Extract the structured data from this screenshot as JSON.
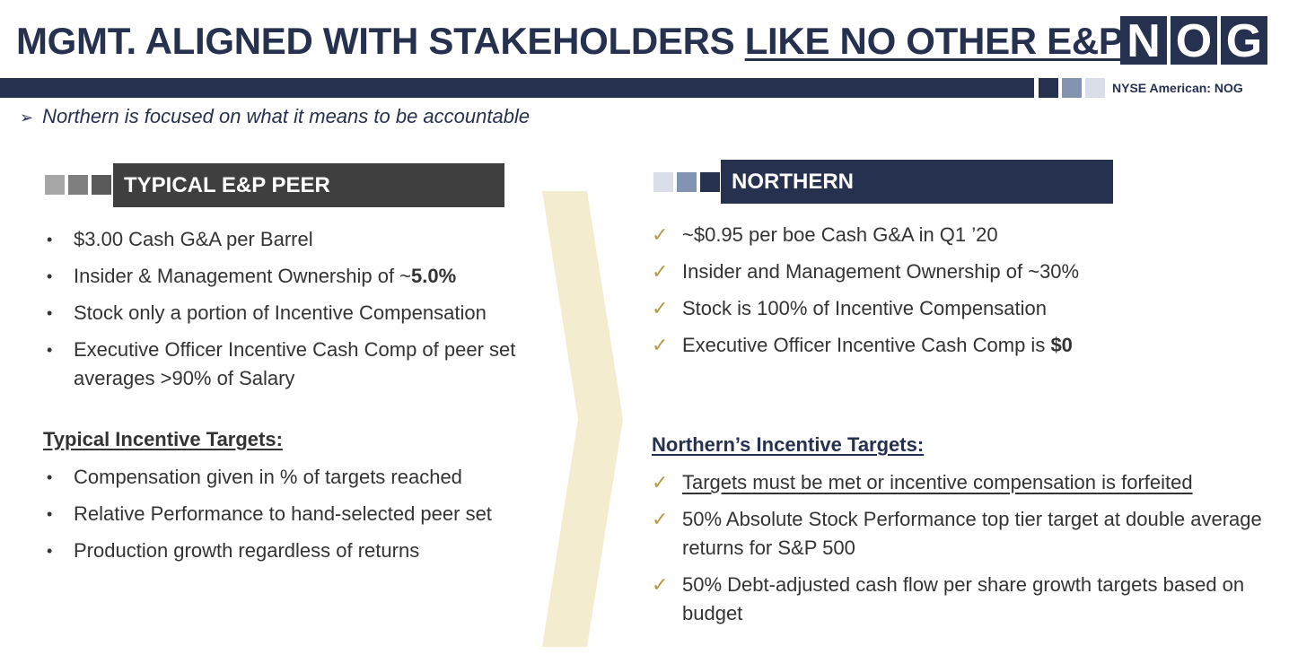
{
  "header": {
    "title_part1": "MGMT. ALIGNED WITH STAKEHOLDERS ",
    "title_part2": "LIKE NO OTHER E&P",
    "logo_letters": [
      "N",
      "O",
      "G"
    ],
    "exchange": "NYSE American: NOG"
  },
  "subtitle": {
    "arrow": "➢",
    "text": "Northern is focused on what it means to be accountable"
  },
  "left": {
    "header": "TYPICAL E&P PEER",
    "bullet_mark": "•",
    "bullets": [
      {
        "text": "$3.00 Cash G&A per Barrel",
        "bold": ""
      },
      {
        "text": "Insider & Management Ownership of ~",
        "bold": "5.0%"
      },
      {
        "text": "Stock only a portion of Incentive Compensation",
        "bold": ""
      },
      {
        "text": "Executive Officer Incentive Cash Comp of peer set averages  >90% of Salary",
        "bold": ""
      }
    ],
    "targets_heading": "Typical Incentive Targets:",
    "targets": [
      "Compensation given in % of targets reached",
      "Relative Performance to hand-selected peer set",
      "Production growth regardless of returns"
    ]
  },
  "right": {
    "header": "NORTHERN",
    "check_mark": "✓",
    "bullets": [
      {
        "text": "~$0.95 per boe Cash G&A in Q1 ’20",
        "bold": ""
      },
      {
        "text": "Insider and Management Ownership of ~30%",
        "bold": ""
      },
      {
        "text": "Stock is 100% of Incentive Compensation",
        "bold": ""
      },
      {
        "text": "Executive Officer Incentive Cash Comp is ",
        "bold": "$0"
      }
    ],
    "targets_heading": "Northern’s Incentive Targets:",
    "targets": [
      "Targets must be met or incentive compensation is forfeited",
      "50% Absolute Stock Performance top tier target at double average returns for S&P 500",
      "50% Debt-adjusted cash flow per share growth targets based on budget"
    ]
  },
  "colors": {
    "navy": "#25314f",
    "dark_gray": "#3f3f3f",
    "chevron": "#f3eccf",
    "check_gold": "#b89a44"
  }
}
